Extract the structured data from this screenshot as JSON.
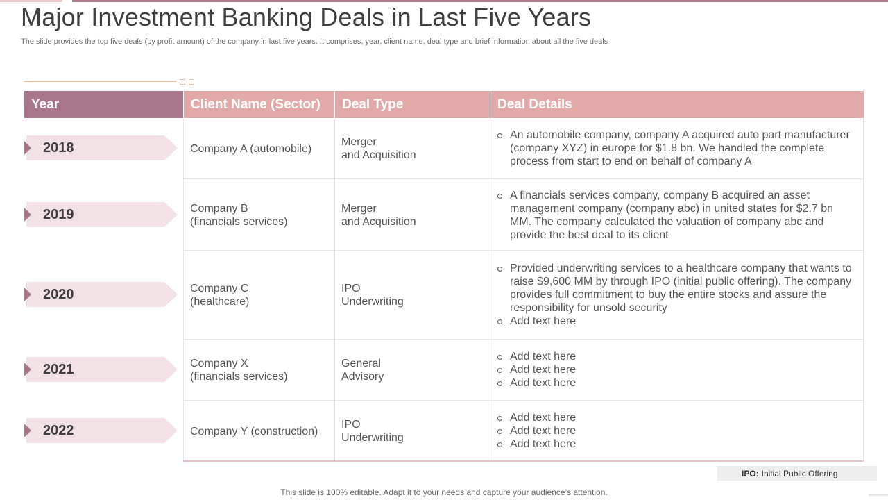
{
  "slide": {
    "title": "Major Investment Banking Deals in Last Five Years",
    "subtitle": "The slide provides the top five deals (by profit amount) of the company in last five years. It comprises, year, client name, deal type and brief information about all the five deals",
    "footer": "This slide is 100% editable. Adapt it to your needs and capture your audience’s attention.",
    "legend": {
      "term": "IPO:",
      "meaning": "Initial Public Offering"
    }
  },
  "colors": {
    "accent": "#a8778b",
    "header": "#e2a9a9",
    "year_tag": "#f2e1e5",
    "deco": "#e3c3a8"
  },
  "table": {
    "headers": [
      "Year",
      "Client Name (Sector)",
      "Deal Type",
      "Deal Details"
    ],
    "rows": [
      {
        "year": "2018",
        "client": [
          "Company A (automobile)"
        ],
        "deal_type": [
          "Merger",
          "and Acquisition"
        ],
        "details": [
          [
            "An automobile company, company A acquired auto part manufacturer",
            "(company XYZ) in europe for $1.8 bn. We handled the complete",
            "process from start to end on behalf of company A"
          ]
        ]
      },
      {
        "year": "2019",
        "client": [
          "Company B",
          "(financials services)"
        ],
        "deal_type": [
          "Merger",
          "and Acquisition"
        ],
        "details": [
          [
            "A financials services company, company B acquired an asset",
            "management company (company abc) in united states for $2.7 bn",
            "MM. The company calculated the valuation of company abc and",
            "provide the best deal to its client"
          ]
        ]
      },
      {
        "year": "2020",
        "client": [
          "Company C",
          "(healthcare)"
        ],
        "deal_type": [
          "IPO",
          "Underwriting"
        ],
        "details": [
          [
            "Provided underwriting services to a healthcare company that wants to",
            "raise $9,600 MM by through IPO (initial public offering). The company",
            "provides full commitment to buy the entire stocks and assure the",
            "responsibility for unsold security"
          ],
          [
            "Add text here"
          ]
        ]
      },
      {
        "year": "2021",
        "client": [
          "Company X",
          "(financials services)"
        ],
        "deal_type": [
          "General",
          "Advisory"
        ],
        "details": [
          [
            "Add text here"
          ],
          [
            "Add text here"
          ],
          [
            "Add text here"
          ]
        ]
      },
      {
        "year": "2022",
        "client": [
          "Company Y (construction)"
        ],
        "deal_type": [
          "IPO",
          "Underwriting"
        ],
        "details": [
          [
            "Add text here"
          ],
          [
            "Add text here"
          ],
          [
            "Add text here"
          ]
        ]
      }
    ]
  }
}
